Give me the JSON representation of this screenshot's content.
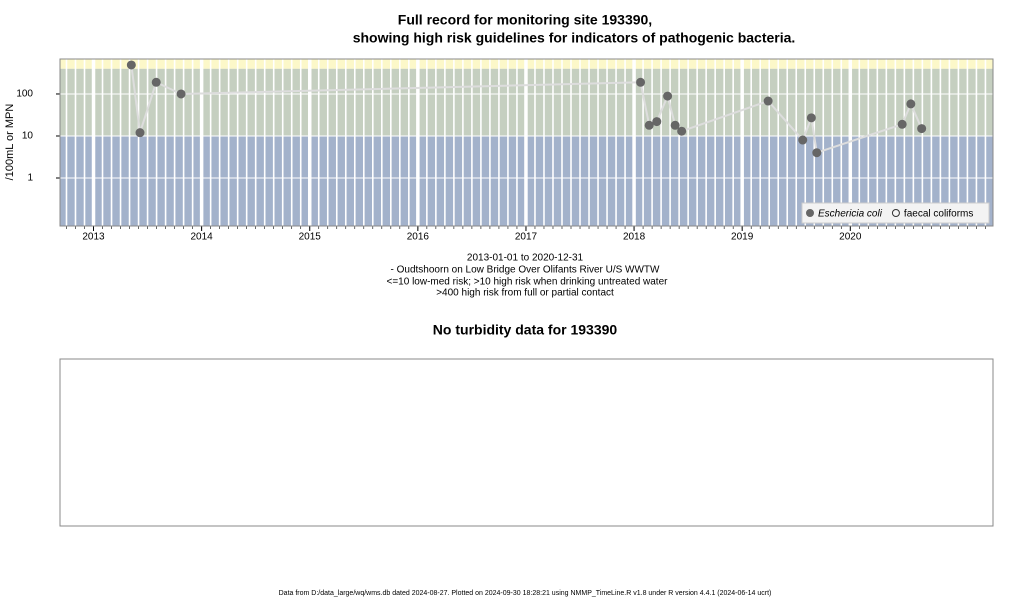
{
  "chart_data": {
    "type": "line",
    "title": "Full record for monitoring site 193390,",
    "subtitle": "showing high risk guidelines for indicators of pathogenic bacteria.",
    "y_label": "/100mL or MPN",
    "notes": [
      "2013-01-01 to 2020-12-31",
      "- Oudtshoorn on Low Bridge Over Olifants River U/S WWTW",
      "<=10 low-med risk; >10 high risk when drinking untreated water",
      ">400 high risk from full or partial contact"
    ],
    "x": [
      2013.35,
      2013.43,
      2013.58,
      2013.81,
      2018.06,
      2018.14,
      2018.21,
      2018.31,
      2018.38,
      2018.44,
      2019.24,
      2019.56,
      2019.64,
      2019.69,
      2020.48,
      2020.56,
      2020.66
    ],
    "series": [
      {
        "name": "Eschericia coli",
        "color": "#666666",
        "line_color": "#dddddd",
        "marker": "filled",
        "values": [
          490,
          12,
          190,
          100,
          190,
          18,
          22,
          89,
          18,
          13,
          68,
          8,
          27,
          4,
          19,
          58,
          15
        ]
      },
      {
        "name": "faecal coliforms",
        "color": "#333333",
        "marker": "open",
        "values": [
          null,
          null,
          null,
          null,
          null,
          null,
          null,
          null,
          null,
          null,
          null,
          null,
          null,
          null,
          null,
          null,
          null
        ]
      }
    ],
    "xlim": [
      2012.69,
      2021.32
    ],
    "xticks": [
      2013,
      2014,
      2015,
      2016,
      2017,
      2018,
      2019,
      2020
    ],
    "ylim": [
      0.072,
      680
    ],
    "yticks": [
      1,
      10,
      100
    ],
    "log_y": true,
    "grid": true,
    "thresholds": [
      10,
      400
    ],
    "band_colors": [
      "#a3b2cb",
      "#c5cfc0",
      "#fcf8c9"
    ],
    "legend": "bottom-right"
  },
  "turbidity_panel": {
    "title": "No turbidity data for 193390"
  },
  "footer": "Data from D:/data_large/wq/wms.db dated 2024-08-27. Plotted on 2024-09-30 18:28:21 using NMMP_TimeLine.R v1.8 under R version 4.4.1 (2024-06-14 ucrt)"
}
